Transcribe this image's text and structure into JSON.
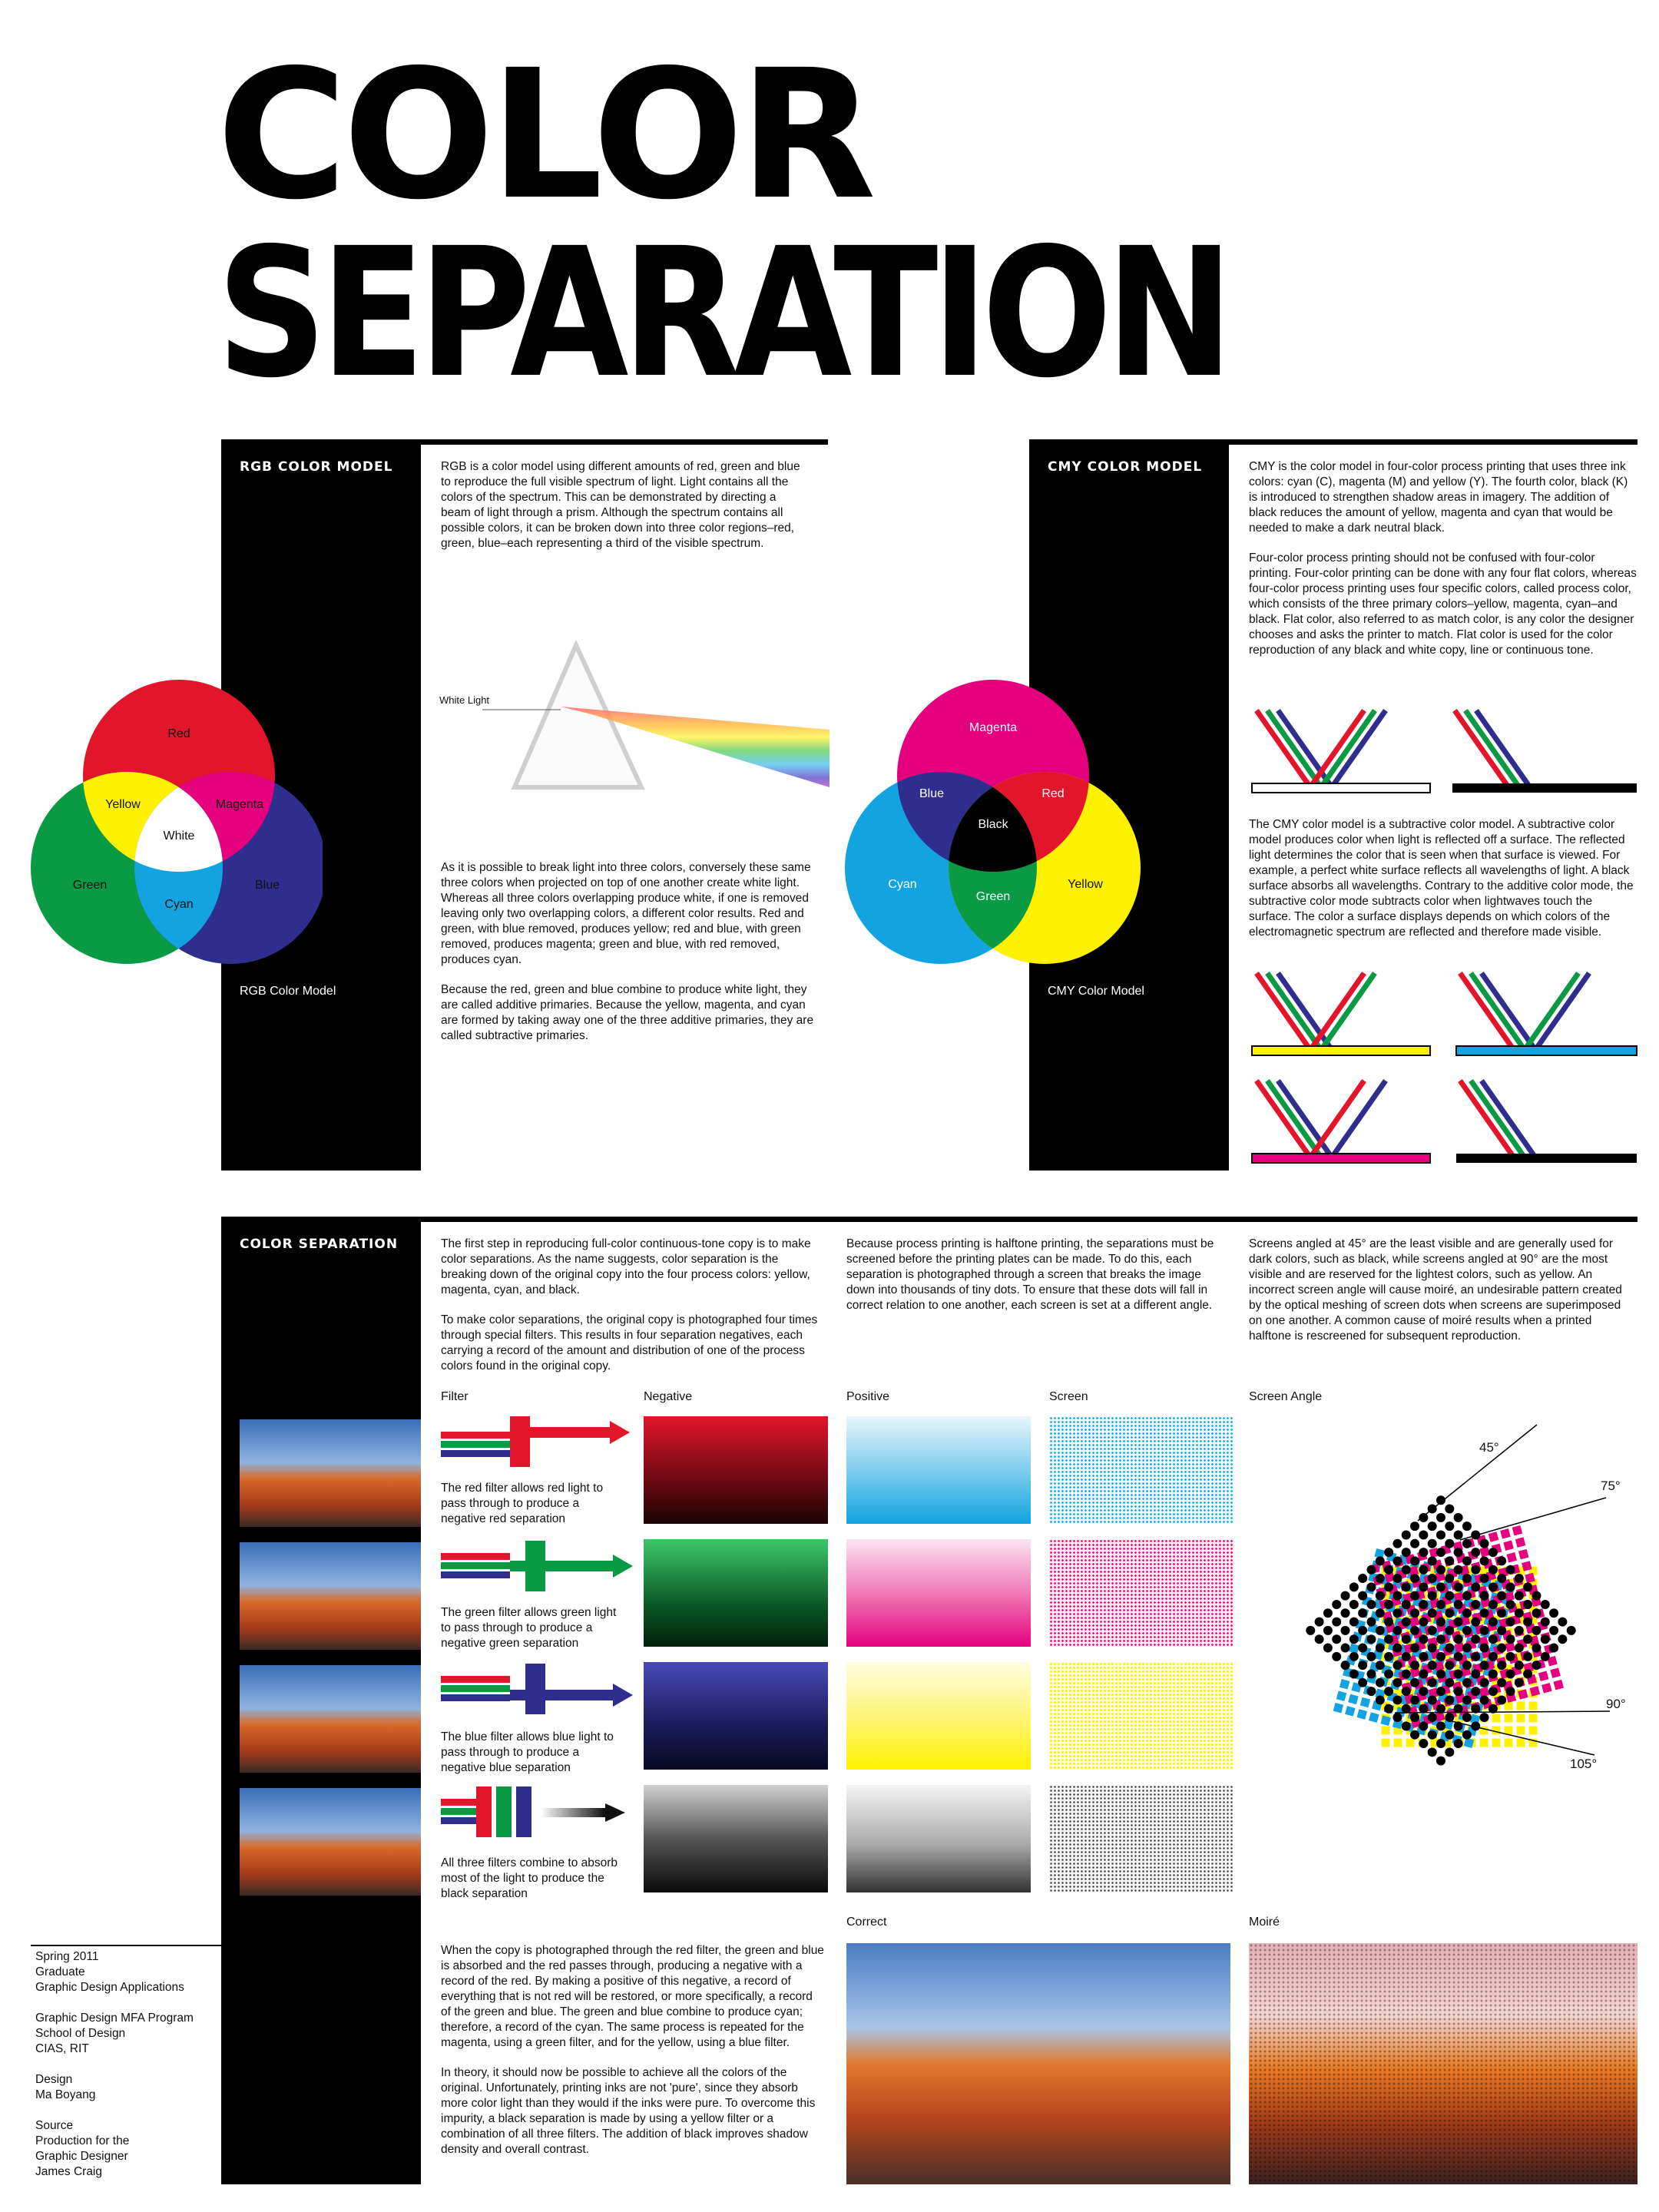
{
  "title": {
    "line1": "COLOR",
    "line2": "SEPARATION"
  },
  "rgb": {
    "heading": "RGB COLOR MODEL",
    "para1": "RGB is a color model using different amounts of red, green and blue to reproduce the full visible spectrum of light. Light contains all the colors of the spectrum. This can be demonstrated by directing a beam of light through a prism. Although the spectrum contains all possible colors, it can be broken down into three color regions–red, green, blue–each representing a third of the visible spectrum.",
    "prism_label": "White Light",
    "para2": "As it is possible to break light into three colors, conversely these same three colors when projected on top of one another create white light. Whereas all three colors overlapping produce white, if one is removed leaving only two overlapping colors, a different color results. Red and green, with blue removed, produces yellow; red and blue, with green removed, produces magenta; green and blue, with red removed, produces cyan.",
    "para3": "Because the red, green and blue combine to produce white light, they are called additive primaries. Because the yellow, magenta, and cyan are formed by taking away one of the three additive primaries, they are called subtractive primaries.",
    "caption": "RGB Color Model",
    "venn": {
      "red": "Red",
      "green": "Green",
      "blue": "Blue",
      "yellow": "Yellow",
      "magenta": "Magenta",
      "cyan": "Cyan",
      "white": "White"
    }
  },
  "cmy": {
    "heading": "CMY COLOR MODEL",
    "para1": "CMY is the color model in four-color process printing that uses three ink colors: cyan (C), magenta (M) and yellow (Y). The fourth color, black (K) is introduced to strengthen shadow areas in imagery. The addition of black reduces the amount of yellow, magenta and cyan that would be needed to make a dark neutral black.",
    "para2": "Four-color process printing should not be confused with four-color printing. Four-color printing can be done with any four flat colors, whereas four-color process printing uses four specific colors, called process color, which consists of the three primary colors–yellow, magenta, cyan–and black. Flat color, also referred to as match color, is any color the designer chooses and asks the printer to match. Flat color is used for the color reproduction of any black and white copy, line or continuous tone.",
    "para3": "The CMY color model is a subtractive color model. A subtractive color model produces color when light is reflected off a surface. The reflected light determines the color that is seen when that surface is viewed. For example, a perfect white surface reflects all wavelengths of light. A black surface absorbs all wavelengths. Contrary to the additive color mode, the subtractive color mode subtracts color when lightwaves touch the surface. The color a surface displays depends on which colors of the electromagnetic spectrum are reflected and therefore made visible.",
    "caption": "CMY Color Model",
    "venn": {
      "magenta": "Magenta",
      "cyan": "Cyan",
      "yellow": "Yellow",
      "blue": "Blue",
      "red": "Red",
      "green": "Green",
      "black": "Black"
    }
  },
  "sep": {
    "heading": "COLOR SEPARATION",
    "col1a": "The first step in reproducing full-color continuous-tone copy is to make color separations. As the name suggests, color separation is the breaking down of the original copy into the four process colors: yellow, magenta, cyan, and black.",
    "col1b": "To make color separations, the original copy is photographed four times through special filters. This results in four separation negatives, each carrying a record of the amount and distribution of one of the process colors found in the original copy.",
    "col2": "Because process printing is halftone printing, the separations must be screened before the printing plates can be made. To do this, each separation is photographed through a screen that breaks the image down into thousands of tiny dots. To ensure that these dots will fall in correct relation to one another, each screen is set at a different angle.",
    "col3": "Screens angled at 45° are the least visible and are generally used for dark colors, such as black, while screens angled at 90° are the most visible and are reserved for the lightest colors, such as yellow. An incorrect screen angle will cause moiré, an undesirable pattern created by the optical meshing of screen dots when screens are superimposed on one another. A common cause of moiré results when a printed halftone is rescreened for subsequent reproduction.",
    "col_labels": {
      "filter": "Filter",
      "negative": "Negative",
      "positive": "Positive",
      "screen": "Screen",
      "angle": "Screen Angle"
    },
    "rows": [
      {
        "caption": "The red filter allows red light to pass through to produce a negative red separation"
      },
      {
        "caption": "The green filter allows green light to pass through to produce a negative green separation"
      },
      {
        "caption": "The blue filter allows blue light to pass through to produce a negative blue separation"
      },
      {
        "caption": "All three filters combine to absorb most of the light to produce the black separation"
      }
    ],
    "angles": [
      "45°",
      "75°",
      "90°",
      "105°"
    ],
    "bottom1": "When the copy is photographed through the red filter, the green and blue is absorbed and the red passes through, producing a negative with a record of the red. By making a positive of this negative, a record of everything that is not red will be restored, or more specifically, a record of the green and blue. The green and blue combine to produce cyan; therefore, a record of the cyan. The same process is repeated for the magenta, using a green filter, and for the yellow, using a blue filter.",
    "bottom2": "In theory, it should now be possible to achieve all the colors of the original. Unfortunately, printing inks are not 'pure', since they absorb more color light than they would if the inks were pure. To overcome this impurity, a black separation is made by using a yellow filter or a combination of all three filters. The addition of black improves shadow density and overall contrast.",
    "correct_label": "Correct",
    "moire_label": "Moiré"
  },
  "footer": {
    "g1": [
      "Spring 2011",
      "Graduate",
      "Graphic Design Applications"
    ],
    "g2": [
      "Graphic Design MFA Program",
      "School of Design",
      "CIAS, RIT"
    ],
    "g3": [
      "Design",
      "Ma Boyang"
    ],
    "g4": [
      "Source",
      "Production for the",
      "Graphic Designer",
      "James Craig"
    ]
  },
  "colors": {
    "red": "#e3152b",
    "green": "#0a9a44",
    "blue": "#2f2e8f",
    "cyan": "#12a3e0",
    "magenta": "#e5007e",
    "yellow": "#fff200",
    "black": "#000000"
  }
}
